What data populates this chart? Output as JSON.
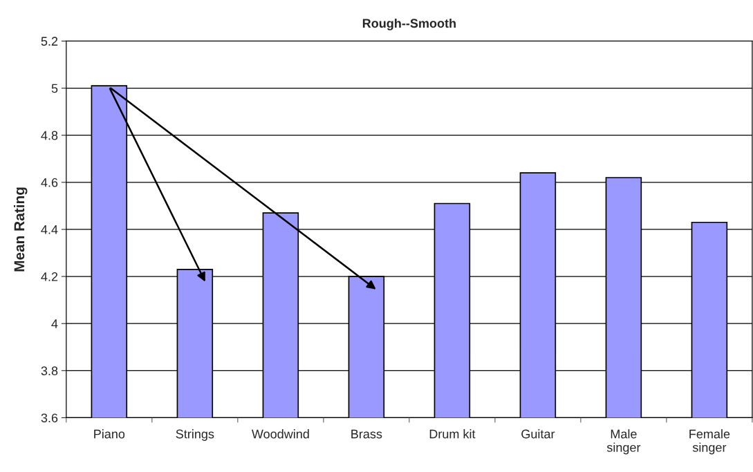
{
  "chart_data": {
    "type": "bar",
    "title": "Rough--Smooth",
    "ylabel": "Mean Rating",
    "categories": [
      "Piano",
      "Strings",
      "Woodwind",
      "Brass",
      "Drum kit",
      "Guitar",
      "Male singer",
      "Female singer"
    ],
    "values": [
      5.01,
      4.23,
      4.47,
      4.2,
      4.51,
      4.64,
      4.62,
      4.43
    ],
    "color": "#9999ff",
    "ylim": [
      3.6,
      5.2
    ],
    "yticks": [
      3.6,
      3.8,
      4,
      4.2,
      4.4,
      4.6,
      4.8,
      5,
      5.2
    ],
    "grid": "y"
  }
}
